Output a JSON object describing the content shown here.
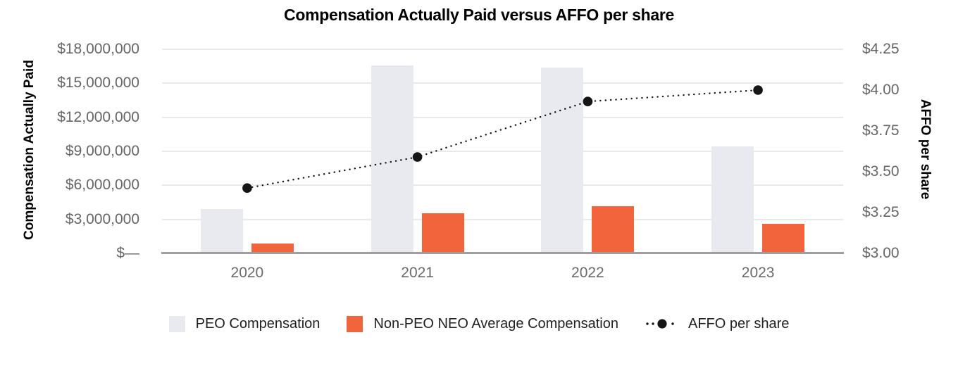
{
  "chart_data": {
    "type": "bar",
    "subtype": "grouped-bars-with-dotted-line-dual-axis",
    "title": "Compensation Actually Paid versus AFFO per share",
    "categories": [
      "2020",
      "2021",
      "2022",
      "2023"
    ],
    "series": [
      {
        "name": "PEO Compensation",
        "type": "bar",
        "axis": "left",
        "color": "#e9eaef",
        "values": [
          3900000,
          16550000,
          16400000,
          9450000
        ]
      },
      {
        "name": "Non-PEO NEO Average Compensation",
        "type": "bar",
        "axis": "left",
        "color": "#f2653c",
        "values": [
          900000,
          3550000,
          4150000,
          2600000
        ]
      },
      {
        "name": "AFFO per share",
        "type": "line",
        "line_style": "dotted",
        "marker": "filled-circle",
        "axis": "right",
        "color": "#151515",
        "values": [
          3.4,
          3.59,
          3.93,
          4.0
        ]
      }
    ],
    "left_axis": {
      "label": "Compensation Actually Paid",
      "min": 0,
      "max": 18000000,
      "tick_step": 3000000,
      "ticks": [
        "$18,000,000",
        "$15,000,000",
        "$12,000,000",
        "$9,000,000",
        "$6,000,000",
        "$3,000,000",
        "$—"
      ]
    },
    "right_axis": {
      "label": "AFFO per share",
      "min": 3.0,
      "max": 4.25,
      "tick_step": 0.25,
      "ticks": [
        "$4.25",
        "$4.00",
        "$3.75",
        "$3.50",
        "$3.25",
        "$3.00"
      ]
    },
    "grid": true,
    "legend_position": "bottom",
    "background_color": "#ffffff",
    "gridline_color": "#e9e9e9",
    "baseline_color": "#9e9e9e",
    "tick_text_color": "#666666"
  }
}
